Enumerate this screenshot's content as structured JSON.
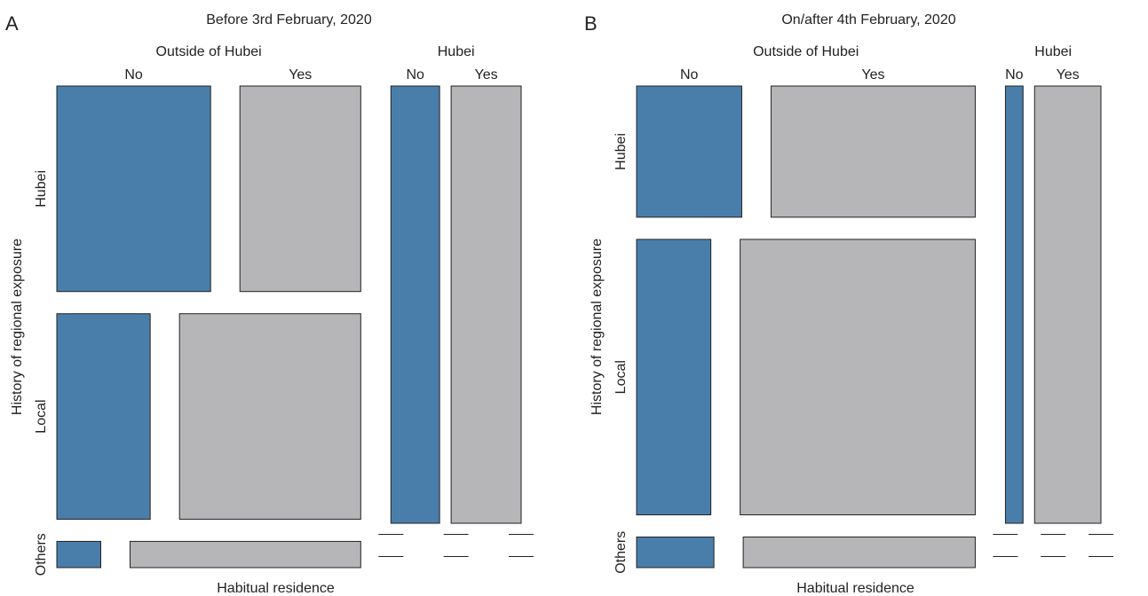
{
  "chart_data": [
    {
      "type": "mosaic",
      "panel_label": "A",
      "title": "Before 3rd February, 2020",
      "xlabel": "Habitual residence",
      "ylabel": "History of regional exposure",
      "column_groups": [
        "Outside of Hubei",
        "Hubei"
      ],
      "column_levels": [
        "No",
        "Yes"
      ],
      "row_categories": [
        "Hubei",
        "Local",
        "Others"
      ],
      "colors": {
        "No": "#4a7eaa",
        "Yes": "#b6b6b8"
      },
      "group_shares": [
        0.7,
        0.3
      ],
      "row_shares_by_group": {
        "Outside of Hubei": [
          0.47,
          0.47,
          0.06
        ],
        "Hubei": [
          1.0,
          0.0,
          0.0
        ]
      },
      "cells": [
        {
          "group": "Outside of Hubei",
          "row": "Hubei",
          "No": 0.56,
          "Yes": 0.44
        },
        {
          "group": "Outside of Hubei",
          "row": "Local",
          "No": 0.34,
          "Yes": 0.66
        },
        {
          "group": "Outside of Hubei",
          "row": "Others",
          "No": 0.16,
          "Yes": 0.84
        },
        {
          "group": "Hubei",
          "row": "Hubei",
          "No": 0.41,
          "Yes": 0.59
        },
        {
          "group": "Hubei",
          "row": "Local",
          "No": 0,
          "Yes": 0
        },
        {
          "group": "Hubei",
          "row": "Others",
          "No": 0,
          "Yes": 0
        }
      ]
    },
    {
      "type": "mosaic",
      "panel_label": "B",
      "title": "On/after 4th February, 2020",
      "xlabel": "Habitual residence",
      "ylabel": "History of regional exposure",
      "column_groups": [
        "Outside of Hubei",
        "Hubei"
      ],
      "column_levels": [
        "No",
        "Yes"
      ],
      "row_categories": [
        "Hubei",
        "Local",
        "Others"
      ],
      "colors": {
        "No": "#4a7eaa",
        "Yes": "#b6b6b8"
      },
      "group_shares": [
        0.78,
        0.22
      ],
      "row_shares_by_group": {
        "Outside of Hubei": [
          0.3,
          0.63,
          0.07
        ],
        "Hubei": [
          1.0,
          0.0,
          0.0
        ]
      },
      "cells": [
        {
          "group": "Outside of Hubei",
          "row": "Hubei",
          "No": 0.34,
          "Yes": 0.66
        },
        {
          "group": "Outside of Hubei",
          "row": "Local",
          "No": 0.24,
          "Yes": 0.76
        },
        {
          "group": "Outside of Hubei",
          "row": "Others",
          "No": 0.25,
          "Yes": 0.75
        },
        {
          "group": "Hubei",
          "row": "Hubei",
          "No": 0.21,
          "Yes": 0.79
        },
        {
          "group": "Hubei",
          "row": "Local",
          "No": 0,
          "Yes": 0
        },
        {
          "group": "Hubei",
          "row": "Others",
          "No": 0,
          "Yes": 0
        }
      ]
    }
  ]
}
